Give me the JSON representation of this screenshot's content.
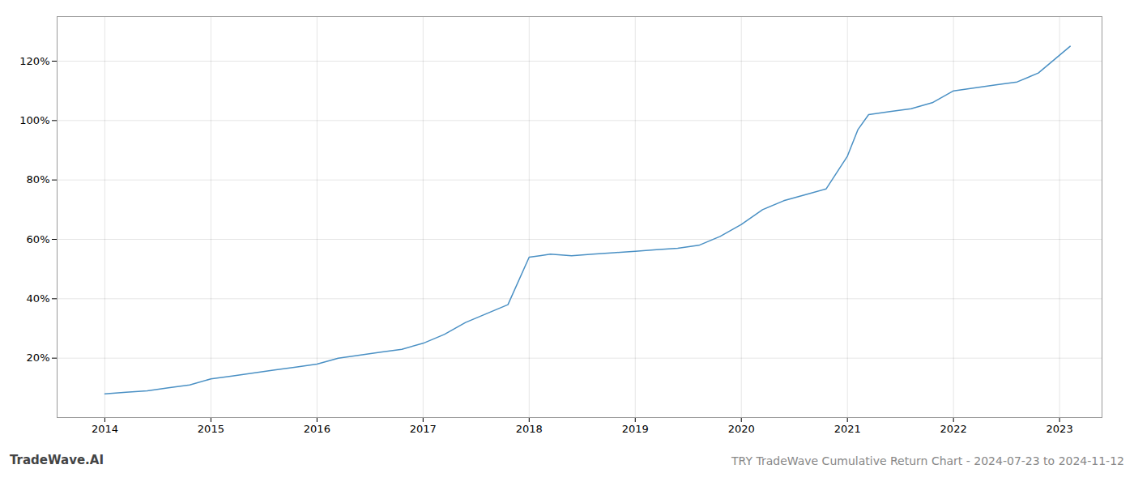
{
  "chart_data": {
    "type": "line",
    "title": "TRY TradeWave Cumulative Return Chart - 2024-07-23 to 2024-11-12",
    "annotations": [
      "TradeWave.AI"
    ],
    "x": [
      2014.0,
      2014.2,
      2014.4,
      2014.6,
      2014.8,
      2015.0,
      2015.2,
      2015.4,
      2015.6,
      2015.8,
      2016.0,
      2016.2,
      2016.4,
      2016.6,
      2016.8,
      2017.0,
      2017.2,
      2017.4,
      2017.6,
      2017.8,
      2018.0,
      2018.1,
      2018.2,
      2018.4,
      2018.6,
      2018.8,
      2019.0,
      2019.2,
      2019.4,
      2019.6,
      2019.8,
      2020.0,
      2020.2,
      2020.4,
      2020.6,
      2020.8,
      2021.0,
      2021.1,
      2021.2,
      2021.4,
      2021.6,
      2021.8,
      2022.0,
      2022.2,
      2022.4,
      2022.6,
      2022.8,
      2023.0,
      2023.1
    ],
    "values": [
      8,
      8.5,
      9,
      10,
      11,
      13,
      14,
      15,
      16,
      17,
      18,
      20,
      21,
      22,
      23,
      25,
      28,
      32,
      35,
      38,
      54,
      54.5,
      55,
      54.5,
      55,
      55.5,
      56,
      56.5,
      57,
      58,
      61,
      65,
      70,
      73,
      75,
      77,
      88,
      97,
      102,
      103,
      104,
      106,
      110,
      111,
      112,
      113,
      116,
      122,
      125
    ],
    "color": "#4a90c4",
    "xlim": [
      2013.55,
      2023.4
    ],
    "ylim": [
      0,
      135
    ],
    "xticks": [
      2014,
      2015,
      2016,
      2017,
      2018,
      2019,
      2020,
      2021,
      2022,
      2023
    ],
    "yticks": [
      {
        "value": 20,
        "label": "20%"
      },
      {
        "value": 40,
        "label": "40%"
      },
      {
        "value": 60,
        "label": "60%"
      },
      {
        "value": 80,
        "label": "80%"
      },
      {
        "value": 100,
        "label": "100%"
      },
      {
        "value": 120,
        "label": "120%"
      }
    ],
    "grid": true
  }
}
